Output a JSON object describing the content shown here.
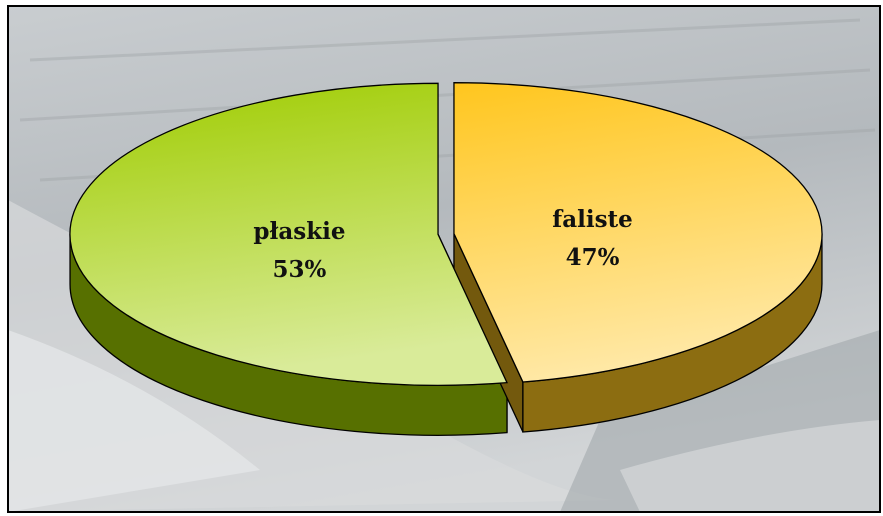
{
  "chart_data": {
    "type": "pie",
    "categories": [
      "płaskie",
      "faliste"
    ],
    "values": [
      53,
      47
    ],
    "value_labels": [
      "53%",
      "47%"
    ],
    "colors": [
      "#9fcc00",
      "#ffc61e"
    ],
    "three_d": true,
    "exploded": true
  }
}
